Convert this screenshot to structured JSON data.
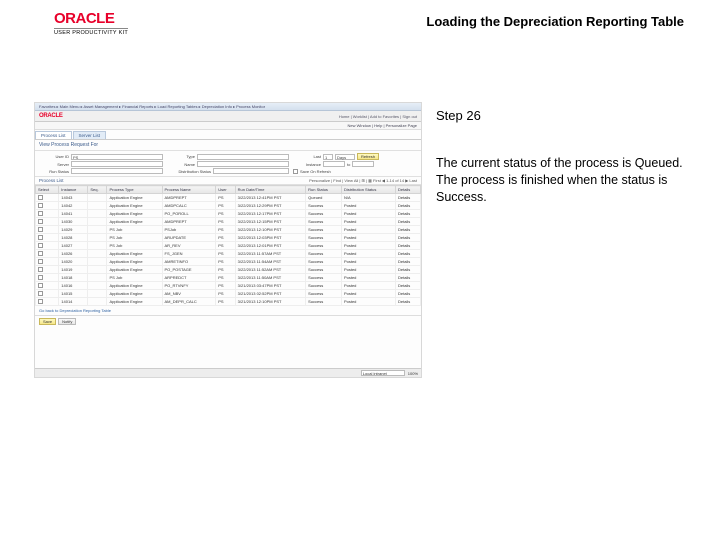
{
  "header": {
    "logo": "ORACLE",
    "logo_subtitle": "USER PRODUCTIVITY KIT",
    "page_title": "Loading the Depreciation Reporting Table"
  },
  "sidebar_text": {
    "step_label": "Step 26",
    "description": "The current status of the process is Queued. The process is finished when the status is Success."
  },
  "screenshot": {
    "breadcrumb": "Favorites ▸  Main Menu ▸  Asset Management ▸  Financial Reports ▸  Load Reporting Tables ▸  Depreciation Info  ▸ Process Monitor",
    "oracle_logo": "ORACLE",
    "oracle_right": "Home | Worklist | Add to Favorites | Sign out",
    "submenu": "New Window | Help | Personalize Page",
    "tabs": {
      "tab1": "Process List",
      "tab2": "Server List"
    },
    "section_title": "View Process Request For",
    "filters": {
      "userid_lbl": "User ID",
      "userid_val": "PS",
      "type_lbl": "Type",
      "type_val": "",
      "last_lbl": "Last",
      "last_val": "1",
      "last_unit": "Days",
      "server_lbl": "Server",
      "server_val": "",
      "name_lbl": "Name",
      "name_val": "",
      "instance_lbl": "Instance",
      "instance_val": "",
      "runstatus_lbl": "Run Status",
      "runstatus_val": "",
      "diststatus_lbl": "Distribution Status",
      "diststatus_val": "",
      "refresh_btn": "Refresh",
      "save_chk": "Save On Refresh"
    },
    "list_title": "Process List",
    "list_right": "Personalize | Find | View All | ⊞ | ▦   First ◀ 1-14 of 14 ▶ Last",
    "columns": {
      "select": "Select",
      "instance": "Instance",
      "seq": "Seq.",
      "ptype": "Process Type",
      "pname": "Process Name",
      "user": "User",
      "rundt": "Run Date/Time",
      "rstatus": "Run Status",
      "dstatus": "Distribution Status",
      "details": "Details"
    },
    "rows": [
      {
        "instance": "14043",
        "seq": "",
        "ptype": "Application Engine",
        "pname": "AMDPREPT",
        "user": "PS",
        "rundt": "3/22/2013 12:41PM PST",
        "rstatus": "Queued",
        "dstatus": "N/A",
        "details": "Details"
      },
      {
        "instance": "14042",
        "seq": "",
        "ptype": "Application Engine",
        "pname": "AMDPCALC",
        "user": "PS",
        "rundt": "3/22/2013 12:29PM PST",
        "rstatus": "Success",
        "dstatus": "Posted",
        "details": "Details"
      },
      {
        "instance": "14041",
        "seq": "",
        "ptype": "Application Engine",
        "pname": "PO_POROLL",
        "user": "PS",
        "rundt": "3/22/2013 12:17PM PST",
        "rstatus": "Success",
        "dstatus": "Posted",
        "details": "Details"
      },
      {
        "instance": "14030",
        "seq": "",
        "ptype": "Application Engine",
        "pname": "AMDPREPT",
        "user": "PS",
        "rundt": "3/22/2013 12:15PM PST",
        "rstatus": "Success",
        "dstatus": "Posted",
        "details": "Details"
      },
      {
        "instance": "14029",
        "seq": "",
        "ptype": "PS Job",
        "pname": "PSJob",
        "user": "PS",
        "rundt": "3/22/2013 12:10PM PST",
        "rstatus": "Success",
        "dstatus": "Posted",
        "details": "Details"
      },
      {
        "instance": "14028",
        "seq": "",
        "ptype": "PS Job",
        "pname": "ARUPDATE",
        "user": "PS",
        "rundt": "3/22/2013 12:03PM PST",
        "rstatus": "Success",
        "dstatus": "Posted",
        "details": "Details"
      },
      {
        "instance": "14027",
        "seq": "",
        "ptype": "PS Job",
        "pname": "AR_REV",
        "user": "PS",
        "rundt": "3/22/2013 12:01PM PST",
        "rstatus": "Success",
        "dstatus": "Posted",
        "details": "Details"
      },
      {
        "instance": "14026",
        "seq": "",
        "ptype": "Application Engine",
        "pname": "FS_JGEN",
        "user": "PS",
        "rundt": "3/22/2013 11:57AM PST",
        "rstatus": "Success",
        "dstatus": "Posted",
        "details": "Details"
      },
      {
        "instance": "14020",
        "seq": "",
        "ptype": "Application Engine",
        "pname": "AMRETINFO",
        "user": "PS",
        "rundt": "3/22/2013 11:54AM PST",
        "rstatus": "Success",
        "dstatus": "Posted",
        "details": "Details"
      },
      {
        "instance": "14019",
        "seq": "",
        "ptype": "Application Engine",
        "pname": "PO_POSTAGE",
        "user": "PS",
        "rundt": "3/22/2013 11:52AM PST",
        "rstatus": "Success",
        "dstatus": "Posted",
        "details": "Details"
      },
      {
        "instance": "14018",
        "seq": "",
        "ptype": "PS Job",
        "pname": "ARPREDCT",
        "user": "PS",
        "rundt": "3/22/2013 11:50AM PST",
        "rstatus": "Success",
        "dstatus": "Posted",
        "details": "Details"
      },
      {
        "instance": "14016",
        "seq": "",
        "ptype": "Application Engine",
        "pname": "PO_RTVNFY",
        "user": "PS",
        "rundt": "3/21/2013 03:47PM PST",
        "rstatus": "Success",
        "dstatus": "Posted",
        "details": "Details"
      },
      {
        "instance": "14015",
        "seq": "",
        "ptype": "Application Engine",
        "pname": "AM_NBV",
        "user": "PS",
        "rundt": "3/21/2013 02:52PM PST",
        "rstatus": "Success",
        "dstatus": "Posted",
        "details": "Details"
      },
      {
        "instance": "14014",
        "seq": "",
        "ptype": "Application Engine",
        "pname": "AM_DEPR_CALC",
        "user": "PS",
        "rundt": "3/21/2013 12:10PM PST",
        "rstatus": "Success",
        "dstatus": "Posted",
        "details": "Details"
      }
    ],
    "goback": "Go back to Depreciation Reporting Table",
    "save_btn": "Save",
    "notify_btn": "Notify",
    "bottom_label": "Local intranet",
    "bottom_zoom": "100%"
  }
}
